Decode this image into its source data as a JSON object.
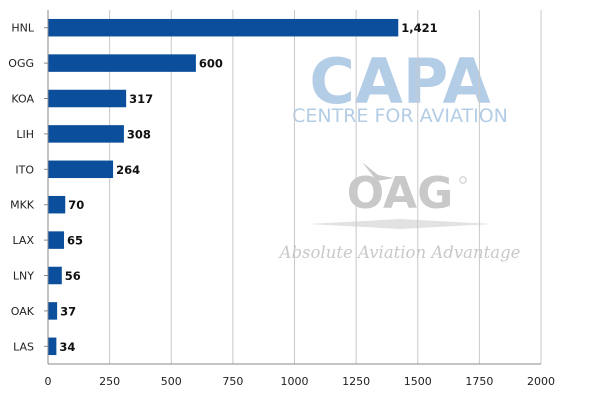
{
  "chart_data": {
    "type": "bar",
    "orientation": "horizontal",
    "categories": [
      "HNL",
      "OGG",
      "KOA",
      "LIH",
      "ITO",
      "MKK",
      "LAX",
      "LNY",
      "OAK",
      "LAS"
    ],
    "values": [
      1421,
      600,
      317,
      308,
      264,
      70,
      65,
      56,
      37,
      34
    ],
    "data_labels": [
      "1,421",
      "600",
      "317",
      "308",
      "264",
      "70",
      "65",
      "56",
      "37",
      "34"
    ],
    "x_ticks": [
      "0",
      "250",
      "500",
      "750",
      "1000",
      "1250",
      "1500",
      "1750",
      "2000"
    ],
    "xlim": [
      0,
      2000
    ],
    "grid": "vertical",
    "bar_color": "#0b4f9c",
    "grid_color": "#c8c8c8"
  },
  "watermark": {
    "logo_text": "CAPA",
    "logo_subtitle": "CENTRE FOR AVIATION",
    "oag_text": "OAG",
    "tagline": "Absolute Aviation Advantage",
    "capa_color": "#b4cde6",
    "oag_color": "#c9c9c9"
  }
}
